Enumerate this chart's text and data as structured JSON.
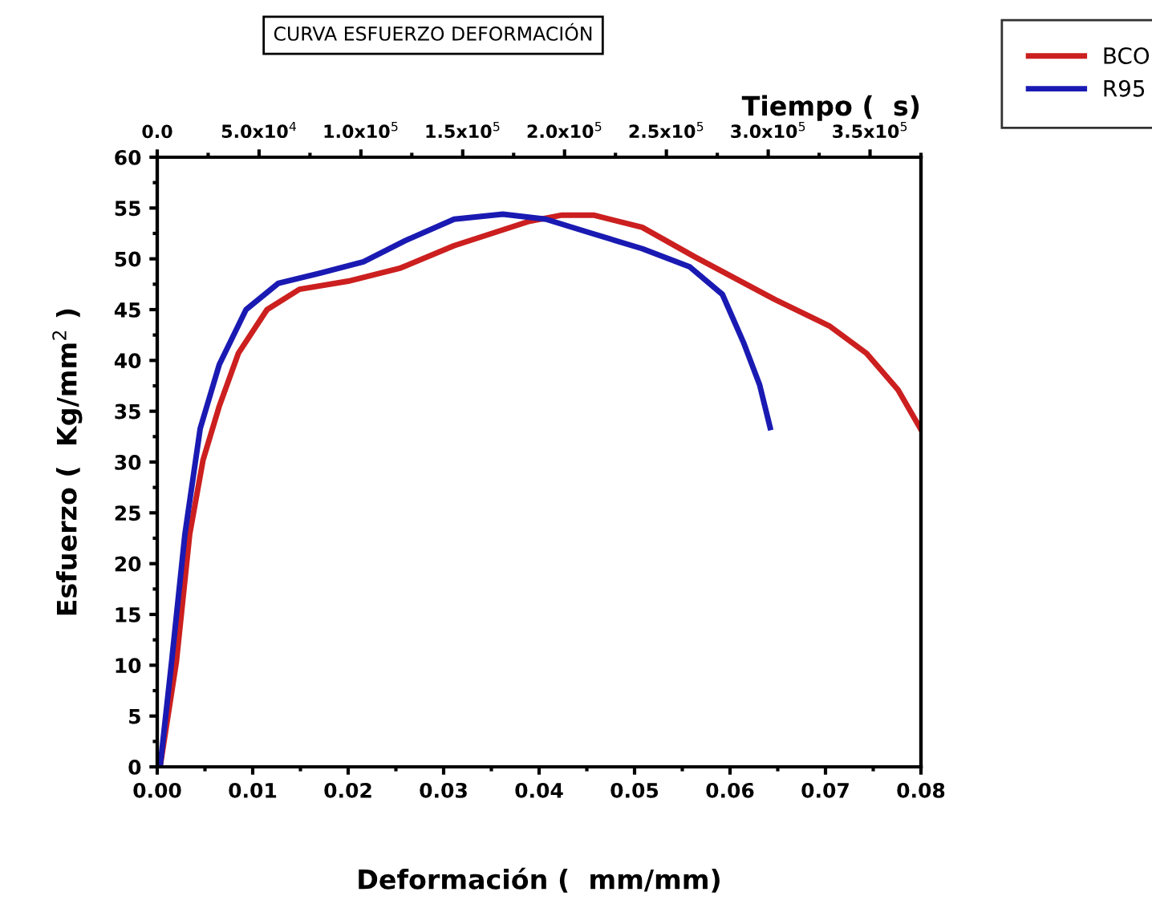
{
  "chart_data": {
    "type": "line",
    "title": "CURVA ESFUERZO DEFORMACIÓN",
    "xlabel": "Deformación (  mm/mm)",
    "ylabel": "Esfuerzo (  Kg/mm$^{2}$ )",
    "x2label": "Tiempo (  s)",
    "xlim": [
      0,
      0.08
    ],
    "xticks": [
      {
        "value": 0,
        "label": "0.00"
      },
      0.01,
      0.02,
      0.03,
      0.04,
      0.05,
      0.06,
      0.07,
      0.08
    ],
    "ylim": [
      0,
      60
    ],
    "yticks": [
      0,
      5,
      10,
      15,
      20,
      25,
      30,
      35,
      40,
      45,
      50,
      55,
      60
    ],
    "x2lim": [
      0,
      375000
    ],
    "x2ticks": [
      {
        "value": 0,
        "label": "0.0"
      },
      {
        "value": 50000,
        "label": "5.0x10$^{4}$"
      },
      {
        "value": 100000,
        "label": "1.0x10$^{5}$"
      },
      {
        "value": 150000,
        "label": "1.5x10$^{5}$"
      },
      {
        "value": 200000,
        "label": "2.0x10$^{5}$"
      },
      {
        "value": 250000,
        "label": "2.5x10$^{5}$"
      },
      {
        "value": 300000,
        "label": "3.0x10$^{5}$"
      },
      {
        "value": 350000,
        "label": "3.5x10$^{5}$"
      }
    ],
    "grid": false,
    "legend": "top right",
    "marker": "none",
    "line_style": "solid",
    "series": [
      {
        "name": "BCO",
        "color": "#cc1f1f",
        "x": [
          0.0003,
          0.002,
          0.0034,
          0.0048,
          0.0065,
          0.0085,
          0.0115,
          0.0149,
          0.02,
          0.0255,
          0.0311,
          0.039,
          0.0424,
          0.0457,
          0.0508,
          0.0563,
          0.0647,
          0.0704,
          0.0743,
          0.0776,
          0.08
        ],
        "values": [
          0,
          10.3,
          22.9,
          30.2,
          35.5,
          40.7,
          45,
          47,
          47.8,
          49.1,
          51.3,
          53.7,
          54.3,
          54.3,
          53.1,
          50.2,
          46,
          43.4,
          40.7,
          37.1,
          33.2
        ]
      },
      {
        "name": "R95",
        "color": "#1a1ab3",
        "x": [
          0.0003,
          0.0015,
          0.0029,
          0.0045,
          0.0065,
          0.0093,
          0.0127,
          0.0171,
          0.0216,
          0.026,
          0.0311,
          0.0362,
          0.0407,
          0.0452,
          0.0508,
          0.0558,
          0.0592,
          0.0614,
          0.0631,
          0.0642
        ],
        "values": [
          0,
          10.3,
          22.9,
          33.3,
          39.6,
          45,
          47.6,
          48.6,
          49.7,
          51.8,
          53.9,
          54.4,
          53.9,
          52.6,
          51,
          49.2,
          46.5,
          41.8,
          37.6,
          33.4
        ]
      }
    ]
  }
}
